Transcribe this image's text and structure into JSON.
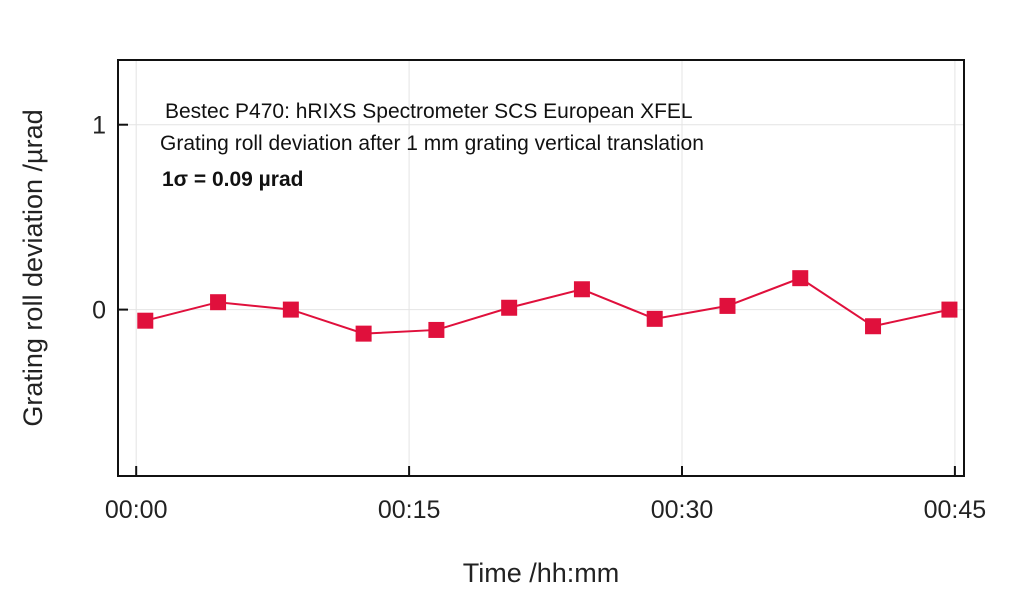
{
  "chart_data": {
    "type": "line",
    "title": "",
    "xlabel": "Time /hh:mm",
    "ylabel": "Grating roll deviation /µrad",
    "x_tick_labels": [
      "00:00",
      "00:15",
      "00:30",
      "00:45"
    ],
    "x_tick_values_min": [
      0,
      15,
      30,
      45
    ],
    "y_tick_labels": [
      "0",
      "1"
    ],
    "y_tick_values": [
      0,
      1
    ],
    "xlim_min": [
      -1,
      45.5
    ],
    "ylim": [
      -0.9,
      1.35
    ],
    "grid": true,
    "legend": "none",
    "annotations": [
      "Bestec P470: hRIXS Spectrometer SCS European XFEL",
      "Grating roll deviation after 1 mm grating vertical translation",
      "1σ = 0.09 µrad"
    ],
    "series": [
      {
        "color": "#e0103c",
        "marker": "square",
        "x_min": [
          0.5,
          4.5,
          8.5,
          12.5,
          16.5,
          20.5,
          24.5,
          28.5,
          32.5,
          36.5,
          40.5,
          44.7
        ],
        "values": [
          -0.06,
          0.04,
          0.0,
          -0.13,
          -0.11,
          0.01,
          0.11,
          -0.05,
          0.02,
          0.17,
          -0.09,
          0.0
        ]
      }
    ]
  }
}
